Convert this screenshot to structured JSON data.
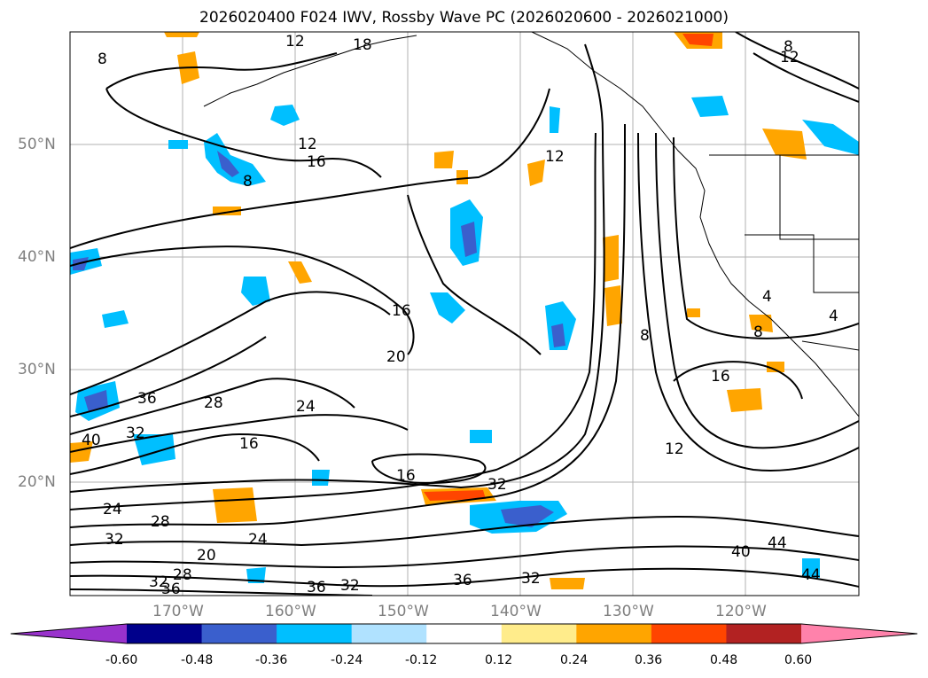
{
  "title": "2026020400 F024 IWV, Rossby Wave PC (2026020600 - 2026021000)",
  "lat_ticks": [
    "50°N",
    "40°N",
    "30°N",
    "20°N"
  ],
  "lon_ticks": [
    "170°W",
    "160°W",
    "150°W",
    "140°W",
    "130°W",
    "120°W"
  ],
  "contour_labels": [
    "12",
    "18",
    "8",
    "12",
    "16",
    "12",
    "8",
    "12",
    "8",
    "16",
    "20",
    "36",
    "28",
    "24",
    "32",
    "40",
    "16",
    "16",
    "32",
    "24",
    "28",
    "32",
    "24",
    "20",
    "28",
    "32",
    "36",
    "36",
    "32",
    "36",
    "32",
    "16",
    "12",
    "8",
    "8",
    "4",
    "4",
    "40",
    "44",
    "44"
  ],
  "colorbar": {
    "tick_labels": [
      "-0.60",
      "-0.48",
      "-0.36",
      "-0.24",
      "-0.12",
      "0.12",
      "0.24",
      "0.36",
      "0.48",
      "0.60"
    ],
    "colors": [
      "#9932cc",
      "#00008b",
      "#3a5fcd",
      "#00bfff",
      "#b0e2ff",
      "#ffffff",
      "#ffec8b",
      "#ffa500",
      "#ff4500",
      "#b22222",
      "#ff82ab"
    ]
  }
}
